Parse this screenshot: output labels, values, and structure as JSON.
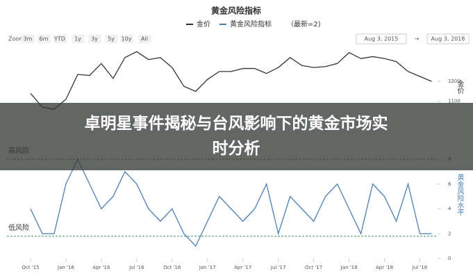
{
  "header": {
    "title": "黄金风险指标",
    "legend_prefix": "（最新=2)",
    "zoom_label": "Zoom",
    "zoom_buttons": [
      "3m",
      "6m",
      "YTD",
      "1y",
      "3y",
      "5y",
      "10y",
      "All"
    ],
    "date_from": "Aug 3, 2015",
    "date_arrow": "→",
    "date_to": "Aug 3, 2018"
  },
  "overlay_title": "卓明星事件揭秘与台风影响下的黄金市场实时分析",
  "chart_data": [
    {
      "type": "line",
      "y_label": "金价",
      "series": [
        {
          "name": "金价",
          "color": "#333333",
          "values": [
            1140,
            1070,
            1060,
            1110,
            1235,
            1230,
            1290,
            1215,
            1320,
            1350,
            1310,
            1320,
            1270,
            1175,
            1150,
            1210,
            1250,
            1250,
            1265,
            1265,
            1240,
            1270,
            1320,
            1280,
            1270,
            1275,
            1290,
            1345,
            1315,
            1325,
            1315,
            1300,
            1250,
            1225,
            1200
          ]
        }
      ],
      "x": [
        0,
        1,
        2,
        3,
        4,
        5,
        6,
        7,
        8,
        9,
        10,
        11,
        12,
        13,
        14,
        15,
        16,
        17,
        18,
        19,
        20,
        21,
        22,
        23,
        24,
        25,
        26,
        27,
        28,
        29,
        30,
        31,
        32,
        33,
        34
      ],
      "xlim": [
        -2,
        34.5
      ],
      "ylim": [
        1050,
        1400
      ],
      "yticks": [
        1100,
        1200
      ]
    },
    {
      "type": "line",
      "y_label": "黄金风险水平",
      "series": [
        {
          "name": "黄金风险指标",
          "color": "#4a7fb5",
          "values": [
            4,
            2,
            2,
            6,
            8,
            6,
            4,
            5,
            7,
            6,
            4,
            3,
            4,
            2,
            1,
            3,
            5,
            4,
            3,
            4,
            6,
            2,
            5,
            4,
            3,
            5,
            6,
            4,
            2,
            6,
            5,
            3,
            6,
            2,
            2
          ]
        }
      ],
      "x": [
        0,
        1,
        2,
        3,
        4,
        5,
        6,
        7,
        8,
        9,
        10,
        11,
        12,
        13,
        14,
        15,
        16,
        17,
        18,
        19,
        20,
        21,
        22,
        23,
        24,
        25,
        26,
        27,
        28,
        29,
        30,
        31,
        32,
        33,
        34
      ],
      "xlim": [
        -2,
        34.5
      ],
      "ylim": [
        0,
        8
      ],
      "yticks": [
        0,
        2,
        4,
        6,
        8
      ],
      "xticks": [
        {
          "value": 0,
          "label": "Oct '15"
        },
        {
          "value": 3,
          "label": "Jan '16"
        },
        {
          "value": 6,
          "label": "Apr '16"
        },
        {
          "value": 9,
          "label": "Jul '16"
        },
        {
          "value": 12,
          "label": "Oct '16"
        },
        {
          "value": 15,
          "label": "Jan '17"
        },
        {
          "value": 18,
          "label": "Apr '17"
        },
        {
          "value": 21,
          "label": "Jul '17"
        },
        {
          "value": 24,
          "label": "Oct '17"
        },
        {
          "value": 27,
          "label": "Jan '18"
        },
        {
          "value": 30,
          "label": "Apr '18"
        },
        {
          "value": 33,
          "label": "Jul '18"
        }
      ],
      "reference_lines": [
        {
          "label": "高风险",
          "value": 8
        },
        {
          "label": "低风险",
          "value": 1.8
        }
      ]
    }
  ]
}
